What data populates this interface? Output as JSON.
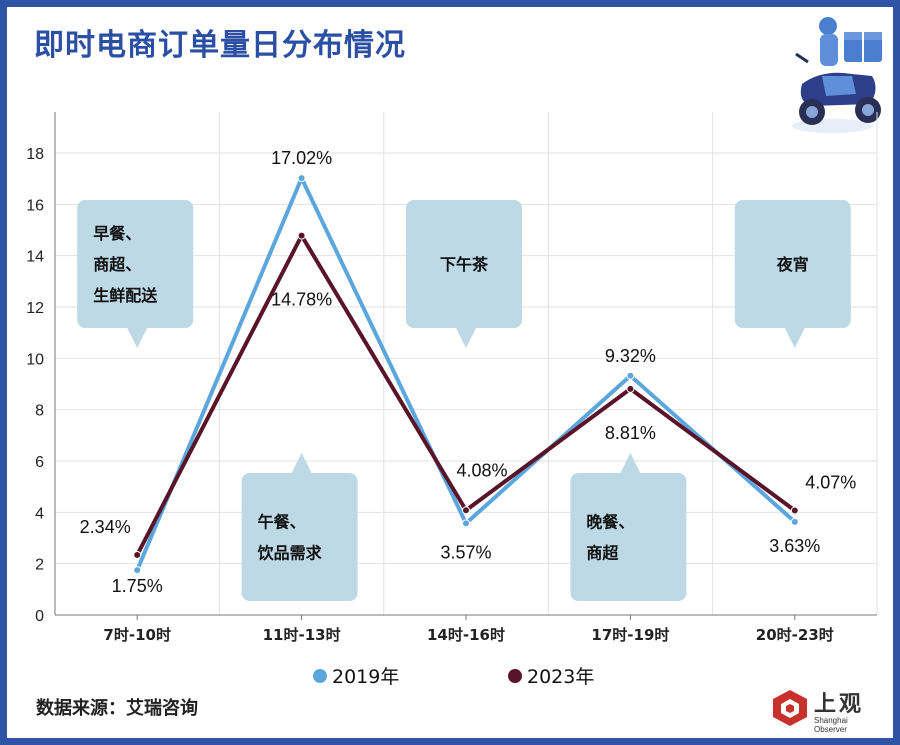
{
  "title": "即时电商订单量日分布情况",
  "source": "数据来源：艾瑞咨询",
  "logo": {
    "main": "上观",
    "sub": "Shanghai Observer"
  },
  "colors": {
    "frame": "#2f54a6",
    "series_2019": "#5ba6dc",
    "series_2023": "#5a1427",
    "bubble": "#bdd9e6",
    "title": "#2b4fa3",
    "logo_accent": "#c8312b"
  },
  "icons": [
    "delivery-rider-icon",
    "shanghai-observer-logo-icon"
  ],
  "chart_data": {
    "type": "line",
    "categories": [
      "7时-10时",
      "11时-13时",
      "14时-16时",
      "17时-19时",
      "20时-23时"
    ],
    "series": [
      {
        "name": "2019年",
        "values": [
          1.75,
          17.02,
          3.57,
          9.32,
          3.63
        ],
        "labels": [
          "1.75%",
          "17.02%",
          "3.57%",
          "9.32%",
          "3.63%"
        ]
      },
      {
        "name": "2023年",
        "values": [
          2.34,
          14.78,
          4.08,
          8.81,
          4.07
        ],
        "labels": [
          "2.34%",
          "14.78%",
          "4.08%",
          "8.81%",
          "4.07%"
        ]
      }
    ],
    "ylim": [
      0,
      18
    ],
    "yticks": [
      "0",
      "2",
      "4",
      "6",
      "8",
      "10",
      "12",
      "14",
      "16",
      "18"
    ],
    "legend_position": "bottom-center",
    "grid": true,
    "annotations": [
      {
        "category": "7时-10时",
        "lines": [
          "早餐、",
          "商超、",
          "生鲜配送"
        ],
        "placement": "above"
      },
      {
        "category": "11时-13时",
        "lines": [
          "午餐、",
          "饮品需求"
        ],
        "placement": "below"
      },
      {
        "category": "14时-16时",
        "lines": [
          "下午茶"
        ],
        "placement": "above"
      },
      {
        "category": "17时-19时",
        "lines": [
          "晚餐、",
          "商超"
        ],
        "placement": "below"
      },
      {
        "category": "20时-23时",
        "lines": [
          "夜宵"
        ],
        "placement": "above"
      }
    ]
  }
}
